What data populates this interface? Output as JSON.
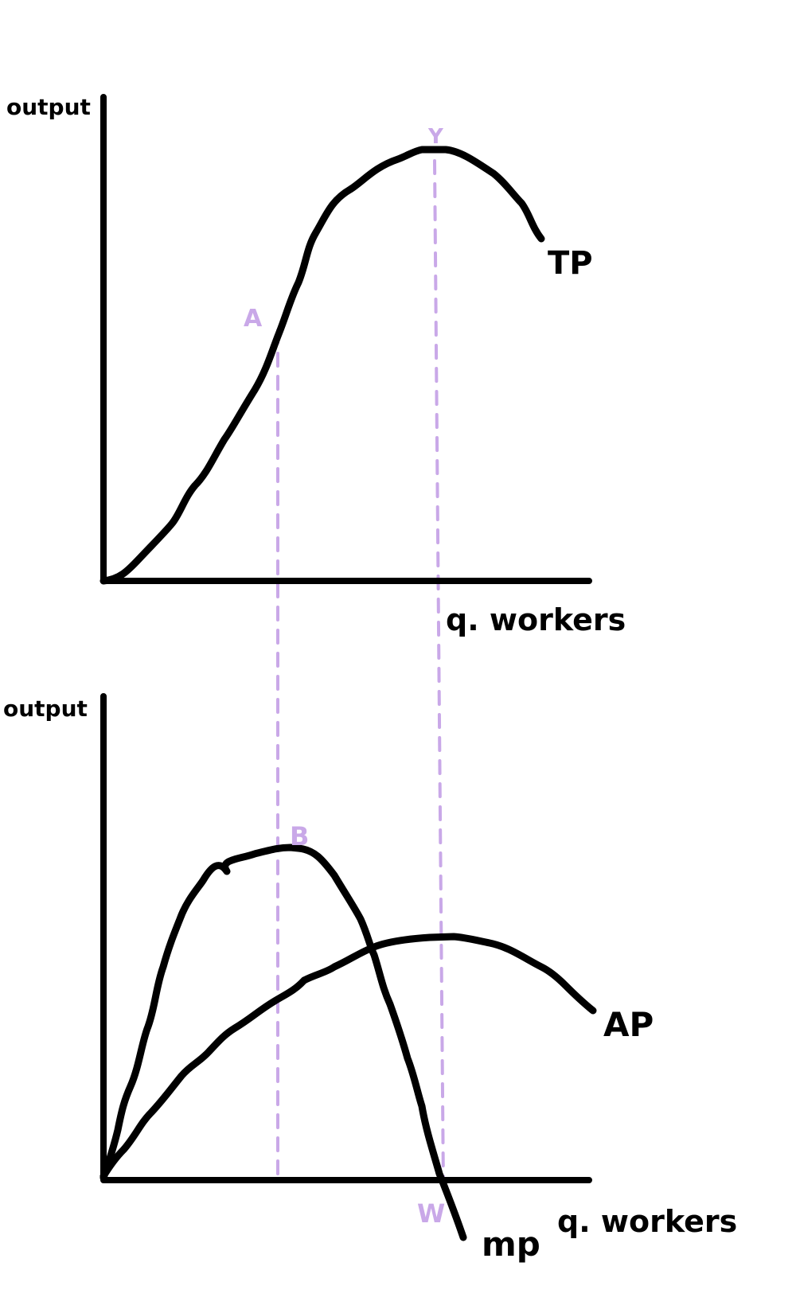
{
  "colors": {
    "ink": "#000000",
    "guide": "#c9a8e8"
  },
  "top_graph": {
    "y_axis_label": "output",
    "x_axis_label": "q. workers",
    "curve_label": "TP",
    "point_a": "A",
    "point_y": "Y"
  },
  "bottom_graph": {
    "y_axis_label": "output",
    "x_axis_label": "q. workers",
    "mp_label": "mp",
    "ap_label": "AP",
    "point_b": "B",
    "point_w": "W"
  }
}
